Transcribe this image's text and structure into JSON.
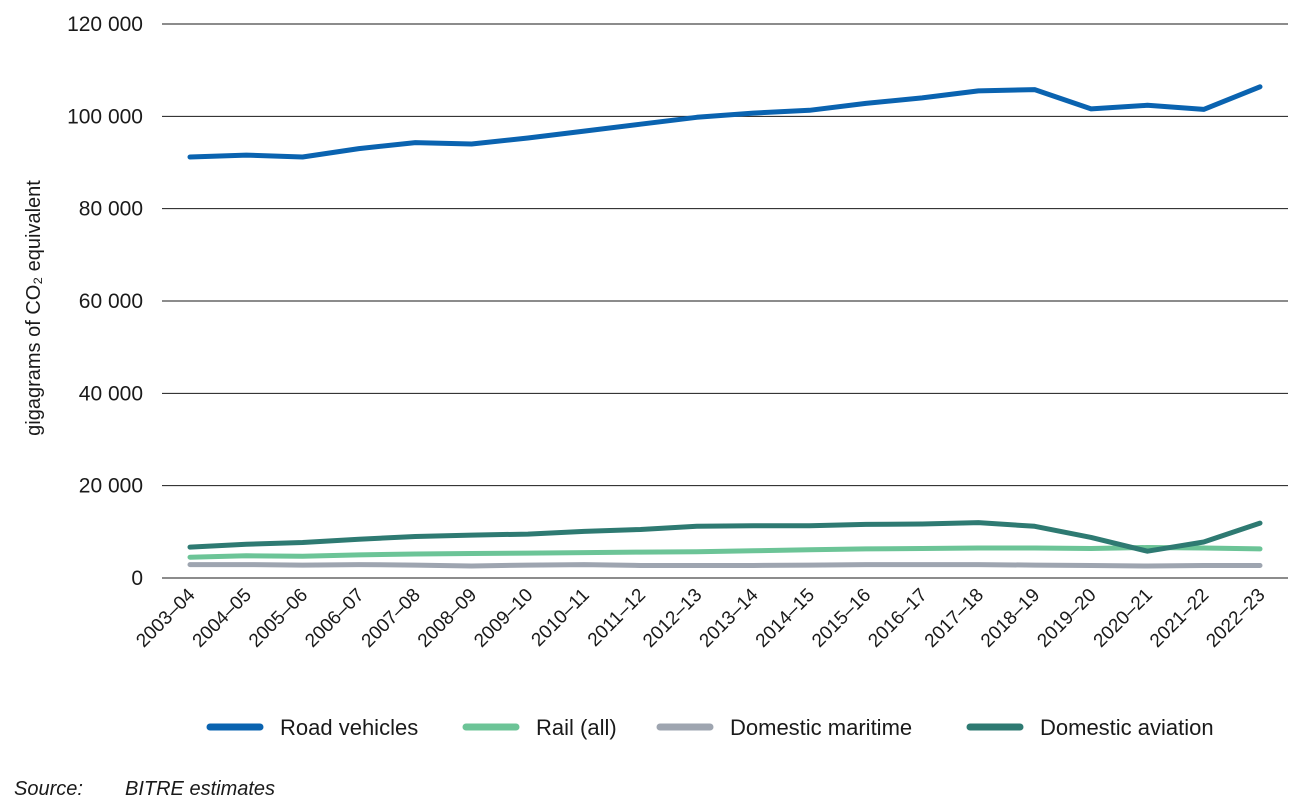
{
  "chart_data": {
    "type": "line",
    "title": "",
    "xlabel": "",
    "ylabel": "gigagrams of CO₂ equivalent",
    "ylim": [
      0,
      120000
    ],
    "yticks": [
      0,
      20000,
      40000,
      60000,
      80000,
      100000,
      120000
    ],
    "ytick_labels": [
      "0",
      "20 000",
      "40 000",
      "60 000",
      "80 000",
      "100 000",
      "120 000"
    ],
    "grid": true,
    "legend_position": "bottom",
    "categories": [
      "2003–04",
      "2004–05",
      "2005–06",
      "2006–07",
      "2007–08",
      "2008–09",
      "2009–10",
      "2010–11",
      "2011–12",
      "2012–13",
      "2013–14",
      "2014–15",
      "2015–16",
      "2016–17",
      "2017–18",
      "2018–19",
      "2019–20",
      "2020–21",
      "2021–22",
      "2022–23"
    ],
    "series": [
      {
        "name": "Road vehicles",
        "color": "#0a63b0",
        "values": [
          91200,
          91600,
          91200,
          93000,
          94300,
          94000,
          95300,
          96800,
          98300,
          99800,
          100700,
          101300,
          102800,
          104000,
          105500,
          105800,
          101600,
          102400,
          101500,
          106400
        ]
      },
      {
        "name": "Rail (all)",
        "color": "#6cc497",
        "values": [
          4500,
          4800,
          4700,
          5000,
          5200,
          5300,
          5400,
          5500,
          5600,
          5700,
          5900,
          6100,
          6300,
          6400,
          6500,
          6500,
          6400,
          6600,
          6500,
          6300
        ]
      },
      {
        "name": "Domestic maritime",
        "color": "#9ea5b0",
        "values": [
          2900,
          2900,
          2800,
          2900,
          2800,
          2600,
          2800,
          2900,
          2700,
          2700,
          2700,
          2800,
          2900,
          2900,
          2900,
          2800,
          2700,
          2600,
          2700,
          2700
        ]
      },
      {
        "name": "Domestic aviation",
        "color": "#2e7a72",
        "values": [
          6700,
          7300,
          7700,
          8400,
          9000,
          9300,
          9500,
          10100,
          10500,
          11200,
          11300,
          11300,
          11600,
          11700,
          12000,
          11200,
          8800,
          5800,
          7800,
          11900
        ]
      }
    ]
  },
  "source": {
    "label": "Source:",
    "text": "BITRE estimates"
  }
}
